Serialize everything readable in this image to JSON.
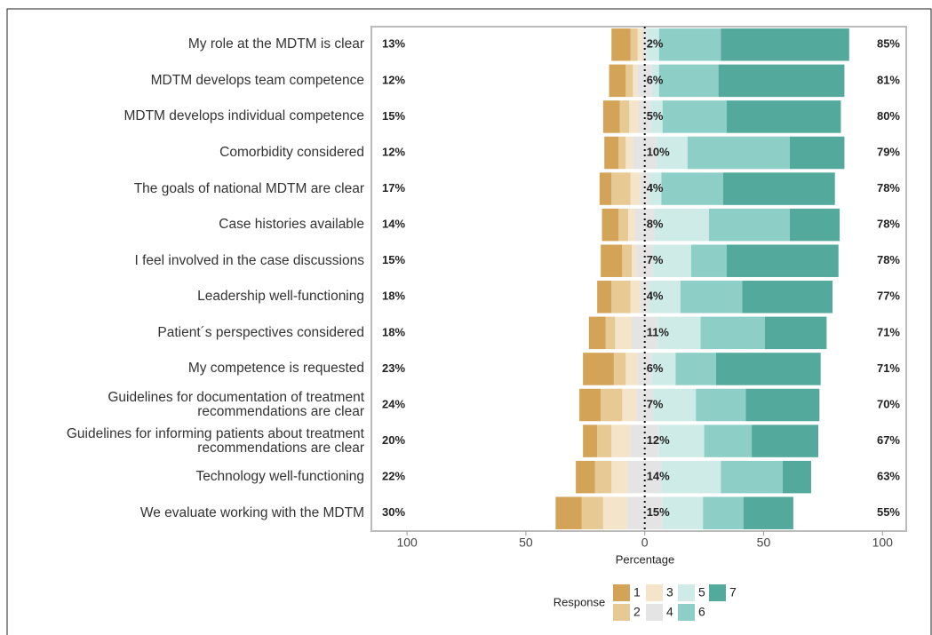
{
  "chart_data": {
    "type": "diverging_bar",
    "x_label": "Percentage",
    "legend_title": "Response",
    "categories": [
      "My role at the MDTM is clear",
      "MDTM develops team competence",
      "MDTM develops individual competence",
      "Comorbidity considered",
      "The goals of national MDTM are clear",
      "Case histories available",
      "I feel involved in the case discussions",
      "Leadership well-functioning",
      "Patient´s perspectives considered",
      "My competence is requested",
      "Guidelines for documentation of treatment\nrecommendations are clear",
      "Guidelines for informing patients about treatment\nrecommendations are clear",
      "Technology well-functioning",
      "We evaluate working with the MDTM"
    ],
    "series": [
      {
        "name": "1",
        "color": "#d3a458",
        "values": [
          8,
          7,
          7,
          6,
          5,
          7,
          9,
          6,
          7,
          13,
          9,
          6,
          8,
          11
        ]
      },
      {
        "name": "2",
        "color": "#e7c993",
        "values": [
          3,
          3,
          4,
          3,
          8,
          4,
          4,
          8,
          4,
          5,
          9,
          6,
          7,
          9
        ]
      },
      {
        "name": "3",
        "color": "#f4e4c9",
        "values": [
          2,
          2,
          4,
          3,
          4,
          3,
          2,
          4,
          7,
          5,
          6,
          8,
          7,
          10
        ]
      },
      {
        "name": "4",
        "color": "#e4e4e4",
        "values": [
          2,
          6,
          5,
          10,
          4,
          8,
          7,
          4,
          11,
          6,
          7,
          12,
          14,
          15
        ]
      },
      {
        "name": "5",
        "color": "#cfebe7",
        "values": [
          5,
          3,
          5,
          13,
          5,
          23,
          16,
          13,
          18,
          10,
          18,
          19,
          25,
          17
        ]
      },
      {
        "name": "6",
        "color": "#8dcfc6",
        "values": [
          26,
          25,
          27,
          43,
          26,
          34,
          15,
          26,
          27,
          17,
          21,
          20,
          26,
          17
        ]
      },
      {
        "name": "7",
        "color": "#53aa9c",
        "values": [
          54,
          53,
          48,
          23,
          47,
          21,
          47,
          38,
          26,
          44,
          31,
          28,
          12,
          21
        ]
      }
    ],
    "low_totals": {
      "values": [
        13,
        12,
        15,
        12,
        17,
        14,
        15,
        18,
        18,
        23,
        24,
        20,
        22,
        30
      ],
      "value_labels": [
        "13%",
        "12%",
        "15%",
        "12%",
        "17%",
        "14%",
        "15%",
        "18%",
        "18%",
        "23%",
        "24%",
        "20%",
        "22%",
        "30%"
      ]
    },
    "neutral_totals": {
      "values": [
        2,
        6,
        5,
        10,
        4,
        8,
        7,
        4,
        11,
        6,
        7,
        12,
        14,
        15
      ],
      "value_labels": [
        "2%",
        "6%",
        "5%",
        "10%",
        "4%",
        "8%",
        "7%",
        "4%",
        "11%",
        "6%",
        "7%",
        "12%",
        "14%",
        "15%"
      ]
    },
    "high_totals": {
      "values": [
        85,
        81,
        80,
        79,
        78,
        78,
        78,
        77,
        71,
        71,
        70,
        67,
        63,
        55
      ],
      "value_labels": [
        "85%",
        "81%",
        "80%",
        "79%",
        "78%",
        "78%",
        "78%",
        "77%",
        "71%",
        "71%",
        "70%",
        "67%",
        "63%",
        "55%"
      ]
    },
    "xlim": [
      -115,
      110
    ],
    "xticks": [
      {
        "value": -100,
        "label": "100"
      },
      {
        "value": -50,
        "label": "50"
      },
      0,
      50,
      100
    ]
  }
}
